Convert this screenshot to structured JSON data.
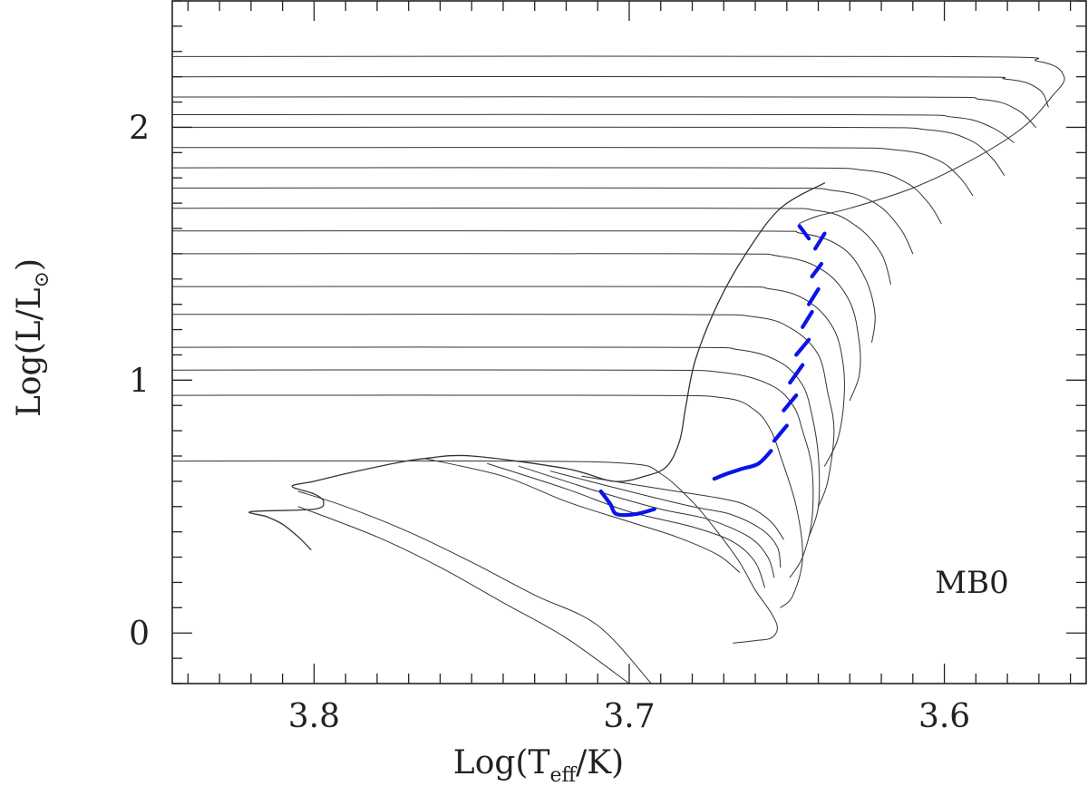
{
  "chart_data": {
    "type": "line",
    "title": "",
    "annotation": "MB0",
    "xlabel": {
      "base": "Log(T",
      "subscript": "eff",
      "tail": "/K)"
    },
    "ylabel": {
      "base": "Log(L/L",
      "subscript": "⊙",
      "tail": ")"
    },
    "xlim": [
      3.845,
      3.555
    ],
    "ylim": [
      -0.2,
      2.5
    ],
    "x_major_ticks": [
      3.8,
      3.7,
      3.6
    ],
    "x_tick_labels": [
      "3.8",
      "3.7",
      "3.6"
    ],
    "x_minor_step": 0.01,
    "y_major_ticks": [
      0,
      1,
      2
    ],
    "y_tick_labels": [
      "0",
      "1",
      "2"
    ],
    "y_minor_step": 0.1,
    "colors": {
      "tracks": "#333333",
      "highlight": "#0a14e6",
      "axes": "#222222"
    },
    "series": [
      {
        "name": "birthline",
        "role": "envelope",
        "points": [
          [
            3.801,
            0.33
          ],
          [
            3.805,
            0.38
          ],
          [
            3.81,
            0.43
          ],
          [
            3.815,
            0.46
          ],
          [
            3.82,
            0.48
          ],
          [
            3.8,
            0.49
          ],
          [
            3.797,
            0.52
          ],
          [
            3.8,
            0.55
          ],
          [
            3.807,
            0.58
          ],
          [
            3.8,
            0.6
          ],
          [
            3.79,
            0.63
          ],
          [
            3.775,
            0.67
          ],
          [
            3.765,
            0.69
          ],
          [
            3.75,
            0.7
          ],
          [
            3.72,
            0.65
          ],
          [
            3.705,
            0.6
          ],
          [
            3.695,
            0.62
          ],
          [
            3.688,
            0.66
          ],
          [
            3.684,
            0.76
          ],
          [
            3.682,
            0.9
          ],
          [
            3.679,
            1.08
          ],
          [
            3.672,
            1.3
          ],
          [
            3.663,
            1.5
          ],
          [
            3.652,
            1.68
          ],
          [
            3.638,
            1.78
          ]
        ]
      },
      {
        "name": "track-0.68",
        "points": [
          [
            3.845,
            0.68
          ],
          [
            3.74,
            0.68
          ],
          [
            3.7,
            0.67
          ],
          [
            3.69,
            0.63
          ],
          [
            3.68,
            0.52
          ],
          [
            3.672,
            0.4
          ],
          [
            3.665,
            0.28
          ],
          [
            3.66,
            0.17
          ],
          [
            3.655,
            0.08
          ],
          [
            3.653,
            0.02
          ],
          [
            3.655,
            -0.02
          ],
          [
            3.66,
            -0.03
          ],
          [
            3.667,
            -0.04
          ]
        ]
      },
      {
        "name": "track-0.94",
        "points": [
          [
            3.845,
            0.94
          ],
          [
            3.7,
            0.94
          ],
          [
            3.67,
            0.93
          ],
          [
            3.66,
            0.88
          ],
          [
            3.655,
            0.8
          ],
          [
            3.652,
            0.7
          ],
          [
            3.647,
            0.5
          ],
          [
            3.645,
            0.3
          ],
          [
            3.648,
            0.15
          ],
          [
            3.652,
            0.1
          ]
        ]
      },
      {
        "name": "track-1.04",
        "points": [
          [
            3.845,
            1.04
          ],
          [
            3.7,
            1.04
          ],
          [
            3.67,
            1.03
          ],
          [
            3.655,
            0.98
          ],
          [
            3.648,
            0.9
          ],
          [
            3.645,
            0.8
          ],
          [
            3.642,
            0.65
          ],
          [
            3.642,
            0.45
          ],
          [
            3.645,
            0.3
          ],
          [
            3.649,
            0.22
          ]
        ]
      },
      {
        "name": "track-1.13",
        "points": [
          [
            3.845,
            1.13
          ],
          [
            3.69,
            1.13
          ],
          [
            3.665,
            1.12
          ],
          [
            3.652,
            1.07
          ],
          [
            3.645,
            0.98
          ],
          [
            3.642,
            0.86
          ],
          [
            3.64,
            0.7
          ],
          [
            3.64,
            0.5
          ],
          [
            3.643,
            0.38
          ]
        ]
      },
      {
        "name": "track-1.26",
        "points": [
          [
            3.845,
            1.26
          ],
          [
            3.69,
            1.26
          ],
          [
            3.66,
            1.25
          ],
          [
            3.648,
            1.2
          ],
          [
            3.64,
            1.1
          ],
          [
            3.637,
            0.95
          ],
          [
            3.635,
            0.8
          ],
          [
            3.637,
            0.6
          ],
          [
            3.64,
            0.5
          ]
        ]
      },
      {
        "name": "track-1.37",
        "points": [
          [
            3.845,
            1.37
          ],
          [
            3.68,
            1.37
          ],
          [
            3.655,
            1.36
          ],
          [
            3.643,
            1.31
          ],
          [
            3.635,
            1.2
          ],
          [
            3.632,
            1.05
          ],
          [
            3.632,
            0.9
          ],
          [
            3.634,
            0.76
          ],
          [
            3.638,
            0.66
          ]
        ]
      },
      {
        "name": "track-1.50",
        "points": [
          [
            3.845,
            1.5
          ],
          [
            3.68,
            1.5
          ],
          [
            3.652,
            1.49
          ],
          [
            3.638,
            1.43
          ],
          [
            3.63,
            1.31
          ],
          [
            3.627,
            1.15
          ],
          [
            3.627,
            1.02
          ],
          [
            3.63,
            0.92
          ]
        ]
      },
      {
        "name": "track-1.59",
        "points": [
          [
            3.845,
            1.59
          ],
          [
            3.67,
            1.59
          ],
          [
            3.645,
            1.58
          ],
          [
            3.632,
            1.52
          ],
          [
            3.625,
            1.4
          ],
          [
            3.622,
            1.26
          ],
          [
            3.623,
            1.15
          ]
        ]
      },
      {
        "name": "track-1.68",
        "points": [
          [
            3.845,
            1.68
          ],
          [
            3.67,
            1.68
          ],
          [
            3.64,
            1.67
          ],
          [
            3.628,
            1.61
          ],
          [
            3.62,
            1.5
          ],
          [
            3.617,
            1.38
          ]
        ]
      },
      {
        "name": "track-1.76",
        "points": [
          [
            3.845,
            1.76
          ],
          [
            3.665,
            1.76
          ],
          [
            3.635,
            1.75
          ],
          [
            3.622,
            1.7
          ],
          [
            3.614,
            1.6
          ],
          [
            3.61,
            1.5
          ]
        ]
      },
      {
        "name": "track-1.84",
        "points": [
          [
            3.845,
            1.84
          ],
          [
            3.66,
            1.84
          ],
          [
            3.625,
            1.83
          ],
          [
            3.612,
            1.78
          ],
          [
            3.605,
            1.7
          ],
          [
            3.601,
            1.62
          ]
        ]
      },
      {
        "name": "track-1.92",
        "points": [
          [
            3.845,
            1.92
          ],
          [
            3.65,
            1.92
          ],
          [
            3.615,
            1.91
          ],
          [
            3.602,
            1.87
          ],
          [
            3.595,
            1.8
          ],
          [
            3.591,
            1.73
          ]
        ]
      },
      {
        "name": "track-2.00",
        "points": [
          [
            3.845,
            2.0
          ],
          [
            3.64,
            2.0
          ],
          [
            3.605,
            1.99
          ],
          [
            3.592,
            1.95
          ],
          [
            3.585,
            1.88
          ],
          [
            3.581,
            1.81
          ]
        ]
      },
      {
        "name": "track-2.05",
        "points": [
          [
            3.845,
            2.05
          ],
          [
            3.63,
            2.05
          ],
          [
            3.597,
            2.04
          ],
          [
            3.585,
            2.0
          ],
          [
            3.578,
            1.94
          ]
        ]
      },
      {
        "name": "track-2.12",
        "points": [
          [
            3.845,
            2.12
          ],
          [
            3.62,
            2.12
          ],
          [
            3.588,
            2.11
          ],
          [
            3.577,
            2.07
          ],
          [
            3.571,
            2.0
          ]
        ]
      },
      {
        "name": "track-2.20",
        "points": [
          [
            3.845,
            2.2
          ],
          [
            3.61,
            2.2
          ],
          [
            3.58,
            2.19
          ],
          [
            3.57,
            2.15
          ],
          [
            3.567,
            2.08
          ]
        ]
      },
      {
        "name": "track-2.28",
        "points": [
          [
            3.845,
            2.28
          ],
          [
            3.6,
            2.28
          ],
          [
            3.57,
            2.26
          ],
          [
            3.562,
            2.2
          ],
          [
            3.566,
            2.12
          ],
          [
            3.575,
            2.0
          ],
          [
            3.59,
            1.88
          ],
          [
            3.61,
            1.76
          ],
          [
            3.63,
            1.68
          ],
          [
            3.64,
            1.65
          ],
          [
            3.646,
            1.62
          ]
        ]
      },
      {
        "name": "loop-0.30",
        "points": [
          [
            3.765,
            0.69
          ],
          [
            3.74,
            0.62
          ],
          [
            3.72,
            0.52
          ],
          [
            3.7,
            0.44
          ],
          [
            3.685,
            0.38
          ],
          [
            3.672,
            0.31
          ],
          [
            3.665,
            0.24
          ]
        ]
      },
      {
        "name": "loop-0.24",
        "points": [
          [
            3.745,
            0.67
          ],
          [
            3.72,
            0.57
          ],
          [
            3.7,
            0.48
          ],
          [
            3.68,
            0.42
          ],
          [
            3.667,
            0.36
          ],
          [
            3.66,
            0.28
          ],
          [
            3.657,
            0.18
          ]
        ]
      },
      {
        "name": "loop-0.20",
        "points": [
          [
            3.735,
            0.66
          ],
          [
            3.71,
            0.56
          ],
          [
            3.69,
            0.49
          ],
          [
            3.675,
            0.45
          ],
          [
            3.662,
            0.38
          ],
          [
            3.656,
            0.3
          ],
          [
            3.654,
            0.22
          ]
        ]
      },
      {
        "name": "loop-0.15",
        "points": [
          [
            3.725,
            0.64
          ],
          [
            3.7,
            0.56
          ],
          [
            3.68,
            0.5
          ],
          [
            3.668,
            0.47
          ],
          [
            3.658,
            0.41
          ],
          [
            3.653,
            0.34
          ],
          [
            3.652,
            0.26
          ]
        ]
      },
      {
        "name": "loop-0.12",
        "points": [
          [
            3.715,
            0.62
          ],
          [
            3.69,
            0.57
          ],
          [
            3.67,
            0.53
          ],
          [
            3.662,
            0.5
          ],
          [
            3.655,
            0.44
          ],
          [
            3.651,
            0.37
          ]
        ]
      },
      {
        "name": "extra-0.55",
        "points": [
          [
            3.805,
            0.56
          ],
          [
            3.79,
            0.5
          ],
          [
            3.77,
            0.4
          ],
          [
            3.75,
            0.28
          ],
          [
            3.73,
            0.15
          ],
          [
            3.71,
            0.03
          ],
          [
            3.693,
            -0.2
          ]
        ]
      },
      {
        "name": "extra-0.45",
        "points": [
          [
            3.805,
            0.5
          ],
          [
            3.78,
            0.38
          ],
          [
            3.76,
            0.26
          ],
          [
            3.74,
            0.12
          ],
          [
            3.72,
            -0.02
          ],
          [
            3.7,
            -0.2
          ]
        ]
      },
      {
        "name": "blue-a",
        "role": "highlight",
        "points": [
          [
            3.709,
            0.56
          ],
          [
            3.706,
            0.51
          ],
          [
            3.704,
            0.47
          ],
          [
            3.698,
            0.47
          ],
          [
            3.692,
            0.49
          ]
        ]
      },
      {
        "name": "blue-b",
        "role": "highlight",
        "points": [
          [
            3.673,
            0.61
          ],
          [
            3.669,
            0.63
          ],
          [
            3.664,
            0.65
          ],
          [
            3.659,
            0.67
          ],
          [
            3.655,
            0.72
          ]
        ]
      },
      {
        "name": "blue-c",
        "role": "highlight",
        "points": [
          [
            3.654,
            0.76
          ],
          [
            3.65,
            0.82
          ]
        ]
      },
      {
        "name": "blue-d",
        "role": "highlight",
        "points": [
          [
            3.651,
            0.88
          ],
          [
            3.647,
            0.94
          ]
        ]
      },
      {
        "name": "blue-e",
        "role": "highlight",
        "points": [
          [
            3.649,
            0.99
          ],
          [
            3.645,
            1.06
          ]
        ]
      },
      {
        "name": "blue-f",
        "role": "highlight",
        "points": [
          [
            3.647,
            1.1
          ],
          [
            3.643,
            1.16
          ]
        ]
      },
      {
        "name": "blue-g",
        "role": "highlight",
        "points": [
          [
            3.645,
            1.21
          ],
          [
            3.642,
            1.27
          ]
        ]
      },
      {
        "name": "blue-h",
        "role": "highlight",
        "points": [
          [
            3.643,
            1.3
          ],
          [
            3.64,
            1.36
          ]
        ]
      },
      {
        "name": "blue-i",
        "role": "highlight",
        "points": [
          [
            3.642,
            1.41
          ],
          [
            3.639,
            1.46
          ]
        ]
      },
      {
        "name": "blue-j",
        "role": "highlight",
        "points": [
          [
            3.641,
            1.52
          ],
          [
            3.638,
            1.58
          ]
        ]
      },
      {
        "name": "blue-k",
        "role": "highlight",
        "points": [
          [
            3.643,
            1.56
          ],
          [
            3.646,
            1.61
          ]
        ]
      }
    ]
  }
}
